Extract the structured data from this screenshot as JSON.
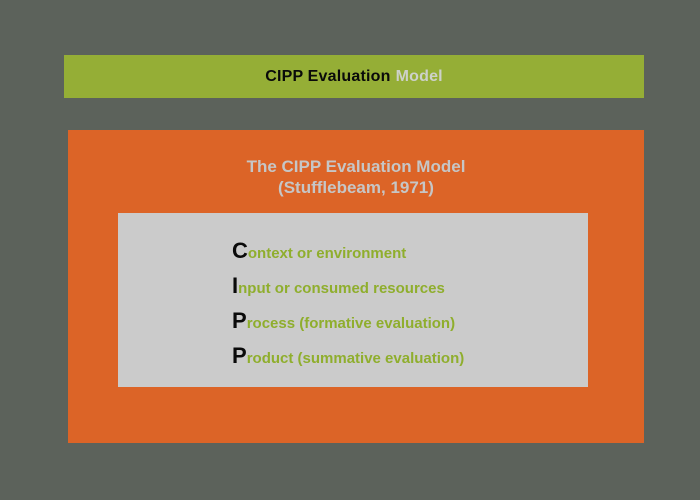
{
  "colors": {
    "page_background": "#5c625b",
    "banner_green": "#95ae36",
    "panel_orange": "#dc6427",
    "inner_box_gray": "#cbcbcb",
    "title_text_gray": "#c6c6c6",
    "list_text_green": "#8fae2d",
    "emphasis_black": "#0a0a0a",
    "banner_light_text": "#cdd1ca"
  },
  "banner": {
    "title_black": "CIPP Evaluation",
    "title_light": "Model"
  },
  "main": {
    "title_line1": "The CIPP Evaluation Model",
    "title_line2": "(Stufflebeam, 1971)",
    "items": [
      {
        "initial": "C",
        "rest": "ontext or environment"
      },
      {
        "initial": "I",
        "rest": "nput or consumed resources"
      },
      {
        "initial": "P",
        "rest": "rocess (formative evaluation)"
      },
      {
        "initial": "P",
        "rest": "roduct (summative evaluation)"
      }
    ]
  }
}
